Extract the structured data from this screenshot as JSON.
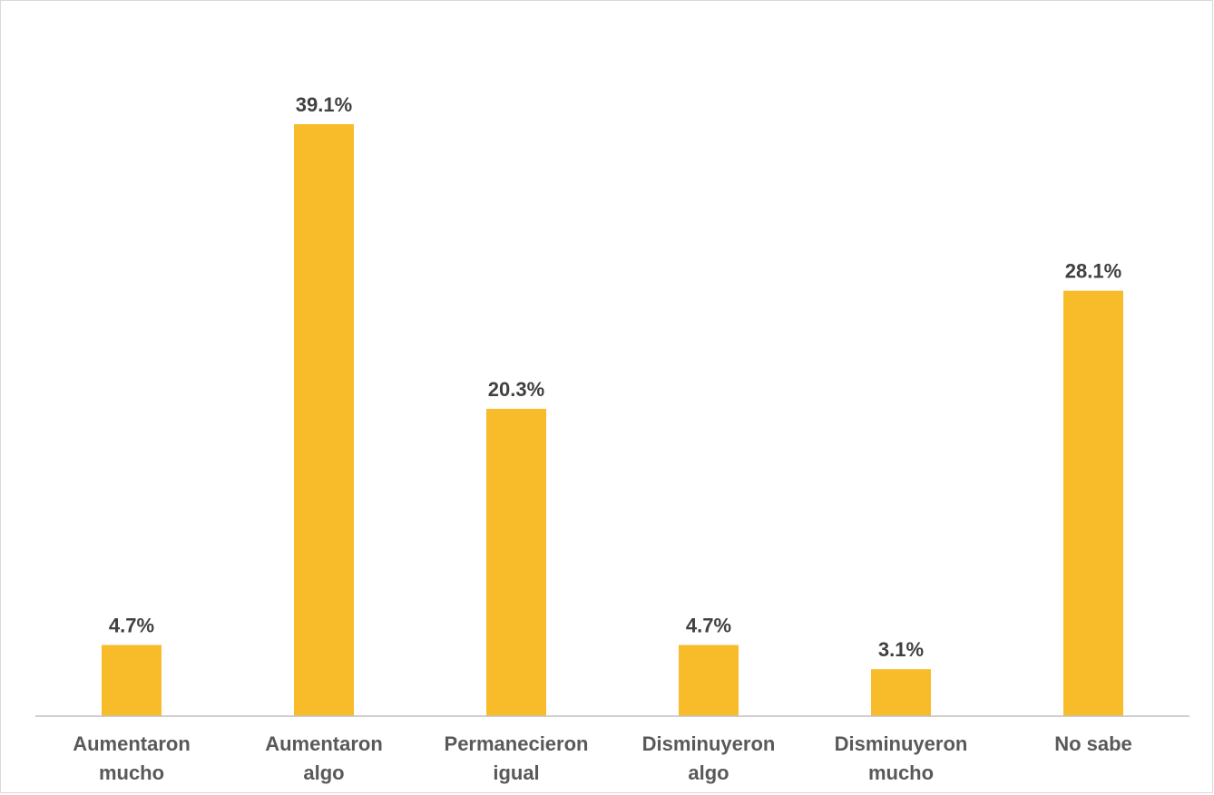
{
  "title": "",
  "chart_data": {
    "type": "bar",
    "title": "",
    "xlabel": "",
    "ylabel": "",
    "categories": [
      [
        "Aumentaron",
        "mucho"
      ],
      [
        "Aumentaron",
        "algo"
      ],
      [
        "Permanecieron",
        "igual"
      ],
      [
        "Disminuyeron",
        "algo"
      ],
      [
        "Disminuyeron",
        "mucho"
      ],
      [
        "No sabe"
      ]
    ],
    "values": [
      4.7,
      39.1,
      20.3,
      4.7,
      3.1,
      28.1
    ],
    "value_labels": [
      "4.7%",
      "39.1%",
      "20.3%",
      "4.7%",
      "3.1%",
      "28.1%"
    ],
    "ylim": [
      0,
      40
    ],
    "grid": false,
    "legend": "none",
    "bar_color": "#F8BC2A",
    "axis_color": "#BFBFBF"
  }
}
